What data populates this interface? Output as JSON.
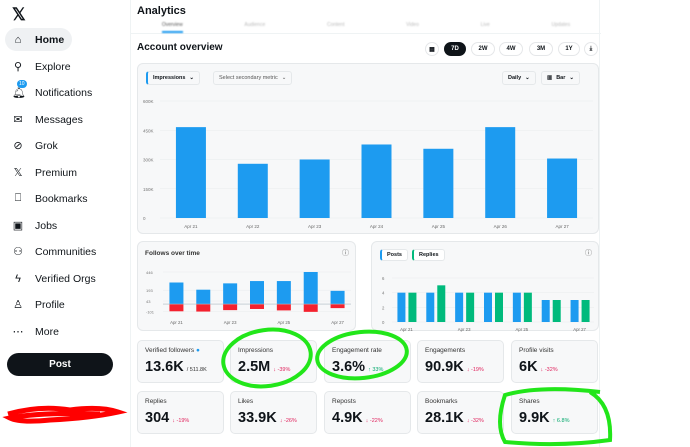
{
  "sidebar": {
    "items": [
      {
        "label": "Home",
        "icon": "home-icon",
        "glyph": "⌂"
      },
      {
        "label": "Explore",
        "icon": "search-icon",
        "glyph": "⚲"
      },
      {
        "label": "Notifications",
        "icon": "bell-icon",
        "glyph": "🔔︎",
        "badge": "10"
      },
      {
        "label": "Messages",
        "icon": "envelope-icon",
        "glyph": "✉"
      },
      {
        "label": "Grok",
        "icon": "grok-icon",
        "glyph": "⊘"
      },
      {
        "label": "Premium",
        "icon": "x-logo-icon",
        "glyph": "𝕏"
      },
      {
        "label": "Bookmarks",
        "icon": "bookmark-icon",
        "glyph": "⎕"
      },
      {
        "label": "Jobs",
        "icon": "briefcase-icon",
        "glyph": "▣"
      },
      {
        "label": "Communities",
        "icon": "people-icon",
        "glyph": "⚇"
      },
      {
        "label": "Verified Orgs",
        "icon": "lightning-icon",
        "glyph": "ϟ"
      },
      {
        "label": "Profile",
        "icon": "person-icon",
        "glyph": "♙"
      },
      {
        "label": "More",
        "icon": "more-icon",
        "glyph": "⋯"
      }
    ],
    "post": "Post",
    "logo": "𝕏"
  },
  "header": {
    "title": "Analytics",
    "tabs": [
      "Overview",
      "Audience",
      "Content",
      "Video",
      "Live",
      "Updates"
    ]
  },
  "overview": {
    "title": "Account overview",
    "ranges": [
      "7D",
      "2W",
      "4W",
      "3M",
      "1Y"
    ],
    "selected": "7D"
  },
  "main_chart": {
    "metric": "Impressions",
    "secondary": "Select secondary metric",
    "interval": "Daily",
    "type_label": "Bar"
  },
  "chart_data": [
    {
      "type": "bar",
      "categories": [
        "Apr 21",
        "Apr 22",
        "Apr 23",
        "Apr 24",
        "Apr 25",
        "Apr 26",
        "Apr 27"
      ],
      "values": [
        466000,
        278000,
        300000,
        377000,
        355000,
        466000,
        305000
      ],
      "yticks": [
        "600K",
        "450K",
        "300K",
        "150K",
        "0"
      ],
      "ylim": [
        0,
        600000
      ],
      "color": "#1d9bf0",
      "grid": true
    },
    {
      "type": "bar",
      "title": "Follows over time",
      "categories": [
        "Apr 21",
        "Apr 22",
        "Apr 23",
        "Apr 24",
        "Apr 25",
        "Apr 26",
        "Apr 27"
      ],
      "series": [
        {
          "values": [
            300,
            200,
            288,
            320,
            320,
            446,
            184
          ],
          "color": "#1d9bf0"
        },
        {
          "values": [
            -100,
            -104,
            -84,
            -68,
            -88,
            -108,
            -56
          ],
          "color": "#f4212e"
        }
      ],
      "yticks": [
        446,
        193,
        43,
        -101
      ],
      "xticks": [
        "Apr 21",
        "Apr 23",
        "Apr 25",
        "Apr 27"
      ],
      "ylim": [
        -110,
        446
      ]
    },
    {
      "type": "bar",
      "categories": [
        "Apr 21",
        "Apr 22",
        "Apr 23",
        "Apr 24",
        "Apr 25",
        "Apr 26",
        "Apr 27"
      ],
      "series": [
        {
          "name": "Posts",
          "values": [
            4,
            4,
            4,
            4,
            4,
            3,
            3
          ],
          "color": "#1d9bf0"
        },
        {
          "name": "Replies",
          "values": [
            4,
            5,
            4,
            4,
            4,
            3,
            3
          ],
          "color": "#00ba7c"
        }
      ],
      "yticks": [
        6,
        4,
        2,
        0
      ],
      "xticks": [
        "Apr 21",
        "Apr 23",
        "Apr 25",
        "Apr 27"
      ],
      "ylim": [
        0,
        6
      ],
      "legend": "top-left"
    }
  ],
  "stats": [
    {
      "label": "Verified followers",
      "value": "13.6K",
      "extra": "/ 511.8K",
      "verified": true
    },
    {
      "label": "Impressions",
      "value": "2.5M",
      "change": "↓ -39%",
      "dir": "down"
    },
    {
      "label": "Engagement rate",
      "value": "3.6%",
      "change": "↑ 33%",
      "dir": "up"
    },
    {
      "label": "Engagements",
      "value": "90.9K",
      "change": "↓ -19%",
      "dir": "down"
    },
    {
      "label": "Profile visits",
      "value": "6K",
      "change": "↓ -32%",
      "dir": "down"
    },
    {
      "label": "Replies",
      "value": "304",
      "change": "↓ -19%",
      "dir": "down"
    },
    {
      "label": "Likes",
      "value": "33.9K",
      "change": "↓ -26%",
      "dir": "down"
    },
    {
      "label": "Reposts",
      "value": "4.9K",
      "change": "↓ -22%",
      "dir": "down"
    },
    {
      "label": "Bookmarks",
      "value": "28.1K",
      "change": "↓ -32%",
      "dir": "down"
    },
    {
      "label": "Shares",
      "value": "9.9K",
      "change": "↑ 6.8%",
      "dir": "up"
    }
  ],
  "annotation_color": "#22e61a",
  "redaction_color": "#ff0000"
}
